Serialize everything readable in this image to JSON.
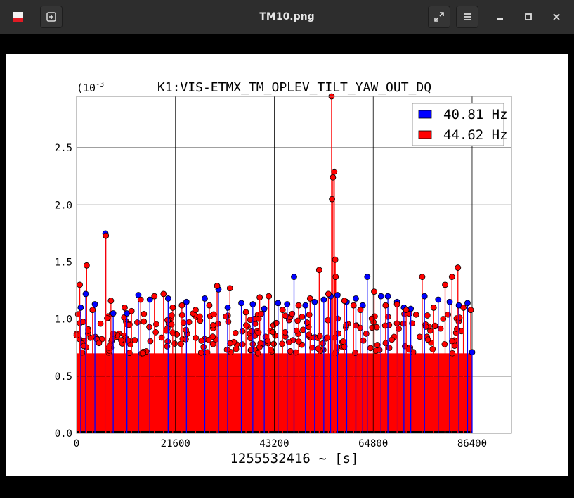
{
  "window": {
    "title": "TM10.png",
    "icons": [
      "app-icon",
      "new-tab-icon",
      "fullscreen-icon",
      "menu-icon",
      "minimize-icon",
      "maximize-icon",
      "close-icon"
    ]
  },
  "chart_data": {
    "type": "scatter",
    "style": "stem",
    "title": "K1:VIS-ETMX_TM_OPLEV_TILT_YAW_OUT_DQ",
    "xlabel": "1255532416 ~ [s]",
    "ylabel": "",
    "y_scale_label": "(10^-3",
    "xlim": [
      0,
      95000
    ],
    "ylim": [
      0,
      0.00295
    ],
    "x_ticks": [
      0,
      21600,
      43200,
      64800,
      86400
    ],
    "y_ticks": [
      0.0,
      0.5,
      1.0,
      1.5,
      2.0,
      2.5
    ],
    "y_tick_multiplier": 0.001,
    "grid": true,
    "legend_position": "top-right",
    "series": [
      {
        "name": "40.81 Hz",
        "color": "#0000ff",
        "points": [
          [
            900,
            1.1
          ],
          [
            2000,
            1.22
          ],
          [
            4000,
            1.13
          ],
          [
            6300,
            1.75
          ],
          [
            8000,
            1.05
          ],
          [
            11000,
            1.05
          ],
          [
            13500,
            1.21
          ],
          [
            16000,
            1.17
          ],
          [
            20000,
            1.18
          ],
          [
            24000,
            1.15
          ],
          [
            28000,
            1.18
          ],
          [
            31000,
            1.26
          ],
          [
            33000,
            1.1
          ],
          [
            36000,
            1.14
          ],
          [
            38500,
            1.13
          ],
          [
            41000,
            1.09
          ],
          [
            44000,
            1.14
          ],
          [
            46000,
            1.13
          ],
          [
            47500,
            1.37
          ],
          [
            50000,
            1.12
          ],
          [
            52000,
            1.15
          ],
          [
            54000,
            1.17
          ],
          [
            55500,
            1.2
          ],
          [
            57000,
            1.21
          ],
          [
            59000,
            1.15
          ],
          [
            61000,
            1.18
          ],
          [
            62500,
            1.12
          ],
          [
            63500,
            1.37
          ],
          [
            66500,
            1.2
          ],
          [
            68000,
            1.2
          ],
          [
            70000,
            1.15
          ],
          [
            71500,
            1.1
          ],
          [
            73000,
            1.09
          ],
          [
            76000,
            1.2
          ],
          [
            79000,
            1.17
          ],
          [
            81500,
            1.15
          ],
          [
            83500,
            1.12
          ],
          [
            85400,
            1.14
          ],
          [
            86400,
            0.71
          ]
        ]
      },
      {
        "name": "44.62 Hz",
        "color": "#ff0000",
        "points": [
          [
            700,
            1.3
          ],
          [
            2200,
            1.47
          ],
          [
            3500,
            1.08
          ],
          [
            6400,
            1.73
          ],
          [
            7500,
            1.16
          ],
          [
            10500,
            1.1
          ],
          [
            12000,
            1.07
          ],
          [
            14000,
            1.17
          ],
          [
            17000,
            1.2
          ],
          [
            19000,
            1.22
          ],
          [
            21000,
            1.1
          ],
          [
            23000,
            1.12
          ],
          [
            26000,
            1.08
          ],
          [
            29000,
            1.12
          ],
          [
            30700,
            1.29
          ],
          [
            33500,
            1.27
          ],
          [
            37000,
            1.06
          ],
          [
            40000,
            1.19
          ],
          [
            42000,
            1.2
          ],
          [
            45000,
            1.08
          ],
          [
            48500,
            1.12
          ],
          [
            51000,
            1.18
          ],
          [
            53000,
            1.43
          ],
          [
            55000,
            1.22
          ],
          [
            55700,
            2.95
          ],
          [
            55800,
            2.05
          ],
          [
            56000,
            2.24
          ],
          [
            56300,
            2.29
          ],
          [
            56500,
            1.52
          ],
          [
            56600,
            1.37
          ],
          [
            58500,
            1.16
          ],
          [
            60500,
            1.12
          ],
          [
            62000,
            1.08
          ],
          [
            65000,
            1.24
          ],
          [
            67500,
            1.12
          ],
          [
            70000,
            1.13
          ],
          [
            72000,
            1.08
          ],
          [
            75500,
            1.37
          ],
          [
            78000,
            1.1
          ],
          [
            80500,
            1.3
          ],
          [
            82000,
            1.37
          ],
          [
            83300,
            1.45
          ],
          [
            84500,
            1.1
          ],
          [
            86100,
            1.08
          ]
        ],
        "baseline_band": [
          0.7,
          1.0
        ]
      }
    ]
  }
}
